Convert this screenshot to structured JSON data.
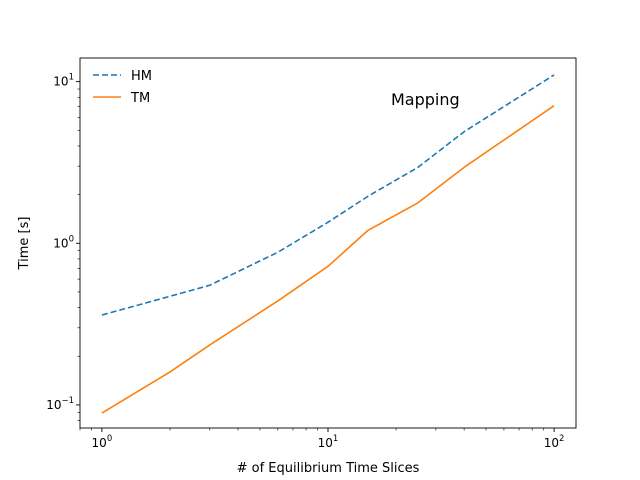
{
  "chart_data": {
    "type": "line",
    "title": "",
    "annotation": "Mapping",
    "xlabel": "# of Equilibrium Time Slices",
    "ylabel": "Time [s]",
    "xscale": "log",
    "yscale": "log",
    "xlim": [
      0.8,
      125
    ],
    "ylim": [
      0.072,
      14
    ],
    "x_ticks": [
      {
        "value": 1,
        "base": "10",
        "exp": "0"
      },
      {
        "value": 10,
        "base": "10",
        "exp": "1"
      },
      {
        "value": 100,
        "base": "10",
        "exp": "2"
      }
    ],
    "y_ticks": [
      {
        "value": 0.1,
        "base": "10",
        "exp": "−1"
      },
      {
        "value": 1,
        "base": "10",
        "exp": "0"
      },
      {
        "value": 10,
        "base": "10",
        "exp": "1"
      }
    ],
    "grid": false,
    "legend_position": "top-left",
    "series": [
      {
        "name": "HM",
        "color": "#1f77b4",
        "style": "dashed",
        "x": [
          1,
          2,
          3,
          6,
          10,
          15,
          25,
          40,
          100
        ],
        "y": [
          0.36,
          0.47,
          0.55,
          0.88,
          1.35,
          1.95,
          2.95,
          4.9,
          11.0
        ]
      },
      {
        "name": "TM",
        "color": "#ff7f0e",
        "style": "solid",
        "x": [
          1,
          2,
          3,
          6,
          10,
          15,
          25,
          40,
          100
        ],
        "y": [
          0.089,
          0.16,
          0.235,
          0.44,
          0.72,
          1.2,
          1.78,
          2.95,
          7.1
        ]
      }
    ]
  }
}
